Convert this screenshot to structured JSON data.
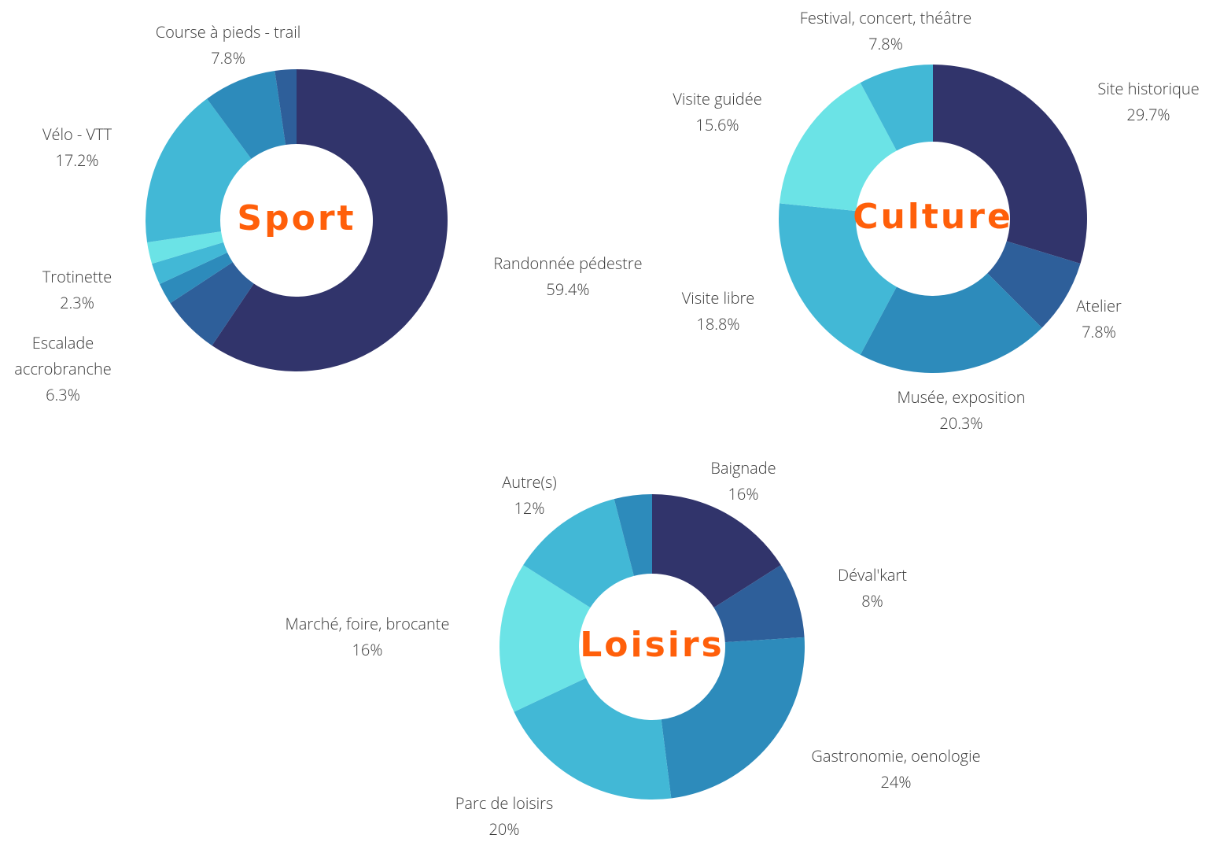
{
  "chart_data": [
    {
      "type": "donut",
      "title": "Sport",
      "categories": [
        "Randonnée pédestre",
        "Escalade accrobranche",
        null,
        null,
        "Trotinette",
        "Vélo - VTT",
        "Course à pieds - trail",
        null
      ],
      "values": [
        59.4,
        6.3,
        2.3,
        2.3,
        2.3,
        17.2,
        7.8,
        2.3
      ],
      "value_labels": [
        "59.4%",
        "6.3%",
        null,
        null,
        "2.3%",
        "17.2%",
        "7.8%",
        null
      ],
      "colors": [
        "#31346b",
        "#2e5f9a",
        "#2d8bbb",
        "#42b8d6",
        "#6be3e6",
        "#42b8d6",
        "#2d8bbb",
        "#2e5f9a"
      ]
    },
    {
      "type": "donut",
      "title": "Culture",
      "categories": [
        "Site historique",
        "Atelier",
        "Musée, exposition",
        "Visite libre",
        "Visite guidée",
        "Festival, concert, théâtre"
      ],
      "values": [
        29.7,
        7.8,
        20.3,
        18.8,
        15.6,
        7.8
      ],
      "value_labels": [
        "29.7%",
        "7.8%",
        "20.3%",
        "18.8%",
        "15.6%",
        "7.8%"
      ],
      "colors": [
        "#31346b",
        "#2e5f9a",
        "#2d8bbb",
        "#42b8d6",
        "#6be3e6",
        "#42b8d6"
      ]
    },
    {
      "type": "donut",
      "title": "Loisirs",
      "categories": [
        "Baignade",
        "Déval'kart",
        "Gastronomie, oenologie",
        "Parc de loisirs",
        "Marché, foire, brocante",
        "Autre(s)",
        null
      ],
      "values": [
        16,
        8,
        24,
        20,
        16,
        12,
        4
      ],
      "value_labels": [
        "16%",
        "8%",
        "24%",
        "20%",
        "16%",
        "12%",
        null
      ],
      "colors": [
        "#31346b",
        "#2e5f9a",
        "#2d8bbb",
        "#42b8d6",
        "#6be3e6",
        "#42b8d6",
        "#2d8bbb"
      ]
    }
  ]
}
